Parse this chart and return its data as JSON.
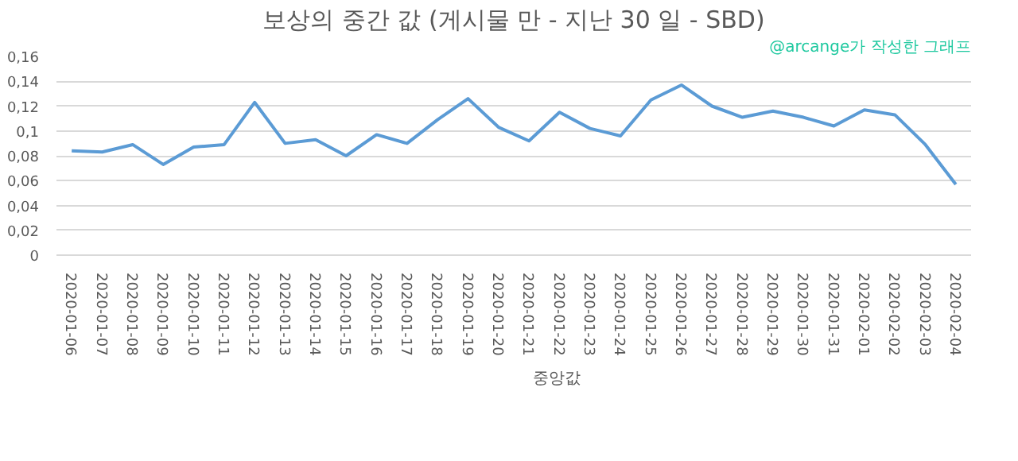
{
  "chart_data": {
    "type": "line",
    "title": "보상의 중간 값 (게시물 만 - 지난 30 일 - SBD)",
    "annotations": [
      "@arcange가 작성한 그래프"
    ],
    "categories": [
      "2020-01-06",
      "2020-01-07",
      "2020-01-08",
      "2020-01-09",
      "2020-01-10",
      "2020-01-11",
      "2020-01-12",
      "2020-01-13",
      "2020-01-14",
      "2020-01-15",
      "2020-01-16",
      "2020-01-17",
      "2020-01-18",
      "2020-01-19",
      "2020-01-20",
      "2020-01-21",
      "2020-01-22",
      "2020-01-23",
      "2020-01-24",
      "2020-01-25",
      "2020-01-26",
      "2020-01-27",
      "2020-01-28",
      "2020-01-29",
      "2020-01-30",
      "2020-01-31",
      "2020-02-01",
      "2020-02-02",
      "2020-02-03",
      "2020-02-04"
    ],
    "series": [
      {
        "name": "중앙값",
        "color": "#5b9bd5",
        "values": [
          0.084,
          0.083,
          0.089,
          0.073,
          0.087,
          0.089,
          0.123,
          0.09,
          0.093,
          0.08,
          0.097,
          0.09,
          0.109,
          0.126,
          0.103,
          0.092,
          0.115,
          0.102,
          0.096,
          0.125,
          0.137,
          0.12,
          0.111,
          0.116,
          0.111,
          0.104,
          0.117,
          0.113,
          0.089,
          0.057
        ]
      }
    ],
    "ylim": [
      0,
      0.16
    ],
    "yticks": [
      0,
      {
        "value": 0.02,
        "label": "0,02"
      },
      {
        "value": 0.04,
        "label": "0,04"
      },
      {
        "value": 0.06,
        "label": "0,06"
      },
      {
        "value": 0.08,
        "label": "0,08"
      },
      {
        "value": 0.1,
        "label": "0,1"
      },
      {
        "value": 0.12,
        "label": "0,12"
      },
      {
        "value": 0.14,
        "label": "0,14"
      },
      {
        "value": 0.16,
        "label": "0,16"
      }
    ],
    "grid": "y",
    "legend": "bottom",
    "marker": "none",
    "line_style": "solid"
  }
}
